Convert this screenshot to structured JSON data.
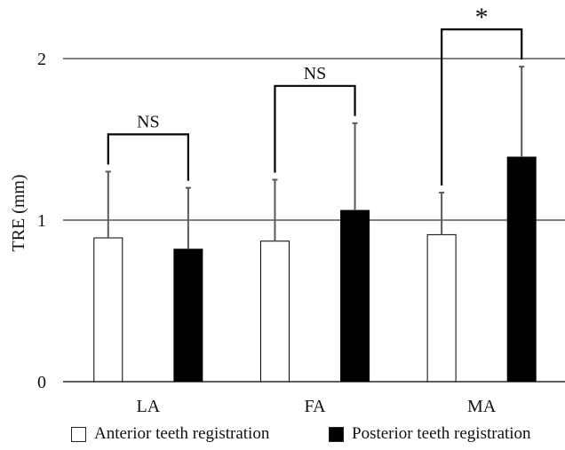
{
  "chart_data": {
    "type": "bar",
    "ylabel": "TRE (mm)",
    "ylim": [
      0,
      2.2
    ],
    "yticks": [
      0,
      1,
      2
    ],
    "grid": "horizontal major lines at 1 and 2",
    "categories": [
      "LA",
      "FA",
      "MA"
    ],
    "series": [
      {
        "name": "Anterior teeth registration",
        "color": "#ffffff",
        "values": [
          0.89,
          0.87,
          0.91
        ],
        "error": [
          0.41,
          0.38,
          0.26
        ]
      },
      {
        "name": "Posterior teeth registration",
        "color": "#000000",
        "values": [
          0.82,
          1.06,
          1.39
        ],
        "error": [
          0.38,
          0.54,
          0.56
        ]
      }
    ],
    "significance": [
      "NS",
      "NS",
      "*"
    ],
    "legend_position": "bottom"
  }
}
